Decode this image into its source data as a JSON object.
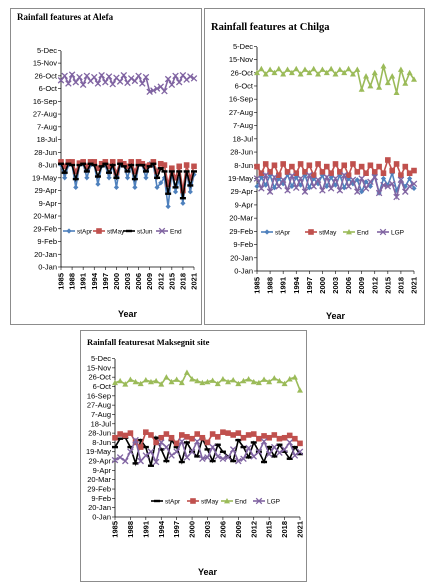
{
  "y_ticks": [
    "0-Jan",
    "20-Jan",
    "9-Feb",
    "29-Feb",
    "20-Mar",
    "9-Apr",
    "29-Apr",
    "19-May",
    "8-Jun",
    "28-Jun",
    "18-Jul",
    "7-Aug",
    "27-Aug",
    "16-Sep",
    "6-Oct",
    "26-Oct",
    "15-Nov",
    "5-Dec"
  ],
  "x_ticks": [
    "1985",
    "1988",
    "1991",
    "1994",
    "1997",
    "2000",
    "2003",
    "2006",
    "2009",
    "2012",
    "2015",
    "2018",
    "2021"
  ],
  "colors": {
    "stApr": "#4f81bd",
    "stMay": "#c0504d",
    "stJun": "#000000",
    "End": "#9bbb59",
    "LGP": "#8064a2",
    "End_alefa": "#8064a2"
  },
  "chart_data": [
    {
      "type": "line",
      "title": "Rainfall features at Alefa",
      "xlabel": "Year",
      "ylabel": "",
      "ylim_days": [
        0,
        339
      ],
      "x": [
        1985,
        1986,
        1987,
        1988,
        1989,
        1990,
        1991,
        1992,
        1993,
        1994,
        1995,
        1996,
        1997,
        1998,
        1999,
        2000,
        2001,
        2002,
        2003,
        2004,
        2005,
        2006,
        2007,
        2008,
        2009,
        2010,
        2011,
        2012,
        2013,
        2014,
        2015,
        2016,
        2017,
        2018,
        2019,
        2020,
        2021
      ],
      "legend_position": "bottom",
      "series": [
        {
          "name": "stApr",
          "color_key": "stApr",
          "marker": "diamond",
          "values_days": [
            160,
            140,
            160,
            160,
            125,
            160,
            162,
            140,
            160,
            160,
            130,
            158,
            160,
            140,
            160,
            125,
            160,
            160,
            140,
            160,
            125,
            160,
            160,
            140,
            162,
            160,
            125,
            132,
            140,
            95,
            148,
            118,
            138,
            100,
            148,
            118,
            145
          ]
        },
        {
          "name": "stMay",
          "color_key": "stMay",
          "marker": "square",
          "values_days": [
            165,
            158,
            165,
            165,
            150,
            163,
            165,
            158,
            165,
            165,
            155,
            162,
            165,
            158,
            165,
            148,
            165,
            162,
            158,
            165,
            150,
            165,
            162,
            158,
            160,
            165,
            150,
            162,
            160,
            130,
            155,
            140,
            158,
            120,
            160,
            140,
            158
          ]
        },
        {
          "name": "stJun",
          "color_key": "stJun",
          "marker": "dash",
          "values_days": [
            162,
            148,
            162,
            160,
            138,
            160,
            162,
            150,
            162,
            160,
            142,
            158,
            162,
            148,
            160,
            140,
            162,
            158,
            150,
            160,
            138,
            160,
            160,
            150,
            158,
            162,
            140,
            155,
            150,
            115,
            150,
            125,
            150,
            108,
            150,
            128,
            150
          ]
        },
        {
          "name": "End",
          "color_key": "End_alefa",
          "marker": "x",
          "values_days": [
            293,
            300,
            288,
            302,
            290,
            298,
            286,
            300,
            292,
            298,
            288,
            301,
            290,
            299,
            287,
            297,
            291,
            301,
            289,
            296,
            292,
            300,
            288,
            298,
            275,
            277,
            280,
            283,
            276,
            295,
            286,
            300,
            290,
            301,
            294,
            299,
            296
          ]
        }
      ]
    },
    {
      "type": "line",
      "title": "Rainfall features at Chilga",
      "xlabel": "Year",
      "ylabel": "",
      "ylim_days": [
        0,
        339
      ],
      "x": [
        1985,
        1986,
        1987,
        1988,
        1989,
        1990,
        1991,
        1992,
        1993,
        1994,
        1995,
        1996,
        1997,
        1998,
        1999,
        2000,
        2001,
        2002,
        2003,
        2004,
        2005,
        2006,
        2007,
        2008,
        2009,
        2010,
        2011,
        2012,
        2013,
        2014,
        2015,
        2016,
        2017,
        2018,
        2019,
        2020,
        2021
      ],
      "legend_position": "bottom",
      "series": [
        {
          "name": "stApr",
          "color_key": "stApr",
          "marker": "diamond",
          "values_days": [
            128,
            142,
            130,
            145,
            126,
            140,
            132,
            146,
            128,
            142,
            130,
            145,
            126,
            140,
            132,
            145,
            128,
            142,
            130,
            145,
            126,
            140,
            132,
            138,
            120,
            135,
            128,
            145,
            118,
            140,
            130,
            148,
            122,
            136,
            128,
            140,
            125
          ]
        },
        {
          "name": "stMay",
          "color_key": "stMay",
          "marker": "square",
          "values_days": [
            158,
            148,
            162,
            150,
            160,
            145,
            162,
            150,
            158,
            148,
            162,
            150,
            160,
            145,
            162,
            150,
            158,
            148,
            162,
            150,
            160,
            145,
            162,
            150,
            158,
            148,
            160,
            150,
            158,
            148,
            168,
            152,
            162,
            145,
            158,
            148,
            152
          ]
        },
        {
          "name": "End",
          "color_key": "End",
          "marker": "triangle",
          "values_days": [
            300,
            306,
            298,
            305,
            300,
            306,
            298,
            305,
            300,
            306,
            298,
            305,
            300,
            306,
            298,
            305,
            300,
            306,
            298,
            305,
            300,
            306,
            298,
            305,
            275,
            295,
            280,
            300,
            278,
            310,
            285,
            295,
            270,
            305,
            284,
            300,
            290
          ]
        },
        {
          "name": "LGP",
          "color_key": "LGP",
          "marker": "x",
          "values_days": [
            140,
            125,
            145,
            120,
            142,
            128,
            138,
            122,
            144,
            126,
            140,
            120,
            145,
            128,
            138,
            122,
            142,
            125,
            140,
            122,
            145,
            128,
            138,
            120,
            140,
            125,
            135,
            142,
            118,
            130,
            128,
            132,
            112,
            138,
            120,
            128,
            132
          ]
        }
      ]
    },
    {
      "type": "line",
      "title": "Rainfall featuresat Maksegnit site",
      "xlabel": "Year",
      "ylabel": "",
      "ylim_days": [
        0,
        339
      ],
      "x": [
        1985,
        1986,
        1987,
        1988,
        1989,
        1990,
        1991,
        1992,
        1993,
        1994,
        1995,
        1996,
        1997,
        1998,
        1999,
        2000,
        2001,
        2002,
        2003,
        2004,
        2005,
        2006,
        2007,
        2008,
        2009,
        2010,
        2011,
        2012,
        2013,
        2014,
        2015,
        2016,
        2017,
        2018,
        2019,
        2020,
        2021
      ],
      "legend_position": "bottom",
      "series": [
        {
          "name": "stApr",
          "color_key": "stJun",
          "marker": "dash",
          "values_days": [
            150,
            168,
            170,
            150,
            115,
            165,
            150,
            110,
            170,
            145,
            120,
            165,
            150,
            118,
            160,
            140,
            130,
            168,
            145,
            120,
            155,
            140,
            130,
            120,
            165,
            150,
            128,
            160,
            140,
            118,
            150,
            130,
            155,
            140,
            125,
            150,
            135
          ]
        },
        {
          "name": "stMay",
          "color_key": "stMay",
          "marker": "square",
          "values_days": [
            170,
            178,
            175,
            180,
            160,
            150,
            182,
            176,
            160,
            170,
            178,
            170,
            158,
            176,
            172,
            168,
            178,
            170,
            160,
            178,
            172,
            182,
            180,
            176,
            180,
            170,
            176,
            178,
            168,
            174,
            170,
            176,
            168,
            170,
            175,
            168,
            158
          ]
        },
        {
          "name": "End",
          "color_key": "End",
          "marker": "triangle",
          "values_days": [
            288,
            292,
            285,
            295,
            290,
            286,
            294,
            290,
            292,
            285,
            300,
            290,
            295,
            288,
            310,
            296,
            292,
            288,
            290,
            293,
            286,
            296,
            290,
            294,
            286,
            292,
            296,
            290,
            288,
            295,
            290,
            298,
            292,
            286,
            296,
            300,
            272
          ]
        },
        {
          "name": "LGP",
          "color_key": "LGP",
          "marker": "x",
          "values_days": [
            122,
            128,
            120,
            140,
            165,
            120,
            132,
            140,
            118,
            160,
            150,
            132,
            140,
            162,
            128,
            140,
            162,
            125,
            128,
            150,
            130,
            125,
            128,
            145,
            120,
            125,
            148,
            130,
            140,
            162,
            135,
            150,
            138,
            145,
            160,
            132,
            140
          ]
        }
      ]
    }
  ]
}
